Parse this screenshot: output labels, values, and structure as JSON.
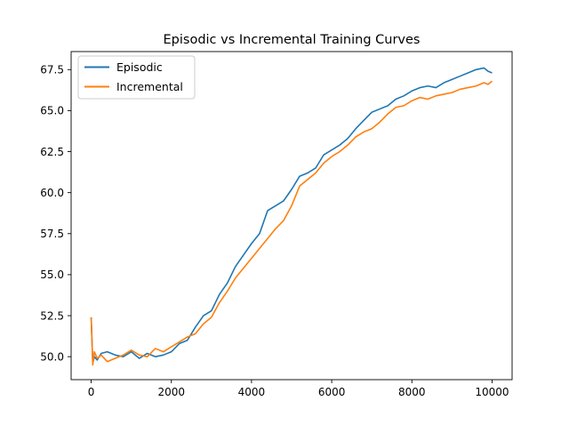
{
  "chart_data": {
    "type": "line",
    "title": "Episodic vs Incremental Training Curves",
    "xlabel": "",
    "ylabel": "",
    "xlim": [
      -500,
      10500
    ],
    "ylim": [
      48.6,
      68.6
    ],
    "xticks": [
      0,
      2000,
      4000,
      6000,
      8000,
      10000
    ],
    "xtick_labels": [
      "0",
      "2000",
      "4000",
      "6000",
      "8000",
      "10000"
    ],
    "yticks": [
      50.0,
      52.5,
      55.0,
      57.5,
      60.0,
      62.5,
      65.0,
      67.5
    ],
    "ytick_labels": [
      "50.0",
      "52.5",
      "55.0",
      "57.5",
      "60.0",
      "62.5",
      "65.0",
      "67.5"
    ],
    "grid": false,
    "legend_position": "upper-left",
    "series": [
      {
        "name": "Episodic",
        "color": "#1f77b4",
        "x": [
          0,
          40,
          80,
          150,
          250,
          400,
          600,
          800,
          1000,
          1200,
          1400,
          1600,
          1800,
          2000,
          2200,
          2400,
          2600,
          2800,
          3000,
          3200,
          3400,
          3600,
          3800,
          4000,
          4200,
          4400,
          4600,
          4800,
          5000,
          5200,
          5400,
          5600,
          5800,
          6000,
          6200,
          6400,
          6600,
          6800,
          7000,
          7200,
          7400,
          7600,
          7800,
          8000,
          8200,
          8400,
          8600,
          8800,
          9000,
          9200,
          9400,
          9600,
          9800,
          9900,
          10000
        ],
        "y": [
          52.4,
          49.6,
          50.0,
          49.8,
          50.2,
          50.3,
          50.1,
          50.0,
          50.3,
          49.9,
          50.2,
          50.0,
          50.1,
          50.3,
          50.8,
          51.0,
          51.8,
          52.5,
          52.8,
          53.8,
          54.5,
          55.5,
          56.2,
          56.9,
          57.5,
          58.9,
          59.2,
          59.5,
          60.2,
          61.0,
          61.2,
          61.5,
          62.3,
          62.6,
          62.9,
          63.3,
          63.9,
          64.4,
          64.9,
          65.1,
          65.3,
          65.7,
          65.9,
          66.2,
          66.4,
          66.5,
          66.4,
          66.7,
          66.9,
          67.1,
          67.3,
          67.5,
          67.6,
          67.4,
          67.3
        ]
      },
      {
        "name": "Incremental",
        "color": "#ff7f0e",
        "x": [
          0,
          40,
          80,
          150,
          250,
          400,
          600,
          800,
          1000,
          1200,
          1400,
          1600,
          1800,
          2000,
          2200,
          2400,
          2600,
          2800,
          3000,
          3200,
          3400,
          3600,
          3800,
          4000,
          4200,
          4400,
          4600,
          4800,
          5000,
          5200,
          5400,
          5600,
          5800,
          6000,
          6200,
          6400,
          6600,
          6800,
          7000,
          7200,
          7400,
          7600,
          7800,
          8000,
          8200,
          8400,
          8600,
          8800,
          9000,
          9200,
          9400,
          9600,
          9800,
          9900,
          10000
        ],
        "y": [
          52.4,
          49.5,
          50.3,
          49.9,
          50.1,
          49.7,
          49.9,
          50.1,
          50.4,
          50.1,
          50.0,
          50.5,
          50.3,
          50.6,
          50.9,
          51.2,
          51.4,
          52.0,
          52.4,
          53.3,
          54.0,
          54.8,
          55.4,
          56.0,
          56.6,
          57.2,
          57.8,
          58.3,
          59.2,
          60.4,
          60.8,
          61.2,
          61.8,
          62.2,
          62.5,
          62.9,
          63.4,
          63.7,
          63.9,
          64.3,
          64.8,
          65.2,
          65.3,
          65.6,
          65.8,
          65.7,
          65.9,
          66.0,
          66.1,
          66.3,
          66.4,
          66.5,
          66.7,
          66.6,
          66.8
        ]
      }
    ]
  }
}
